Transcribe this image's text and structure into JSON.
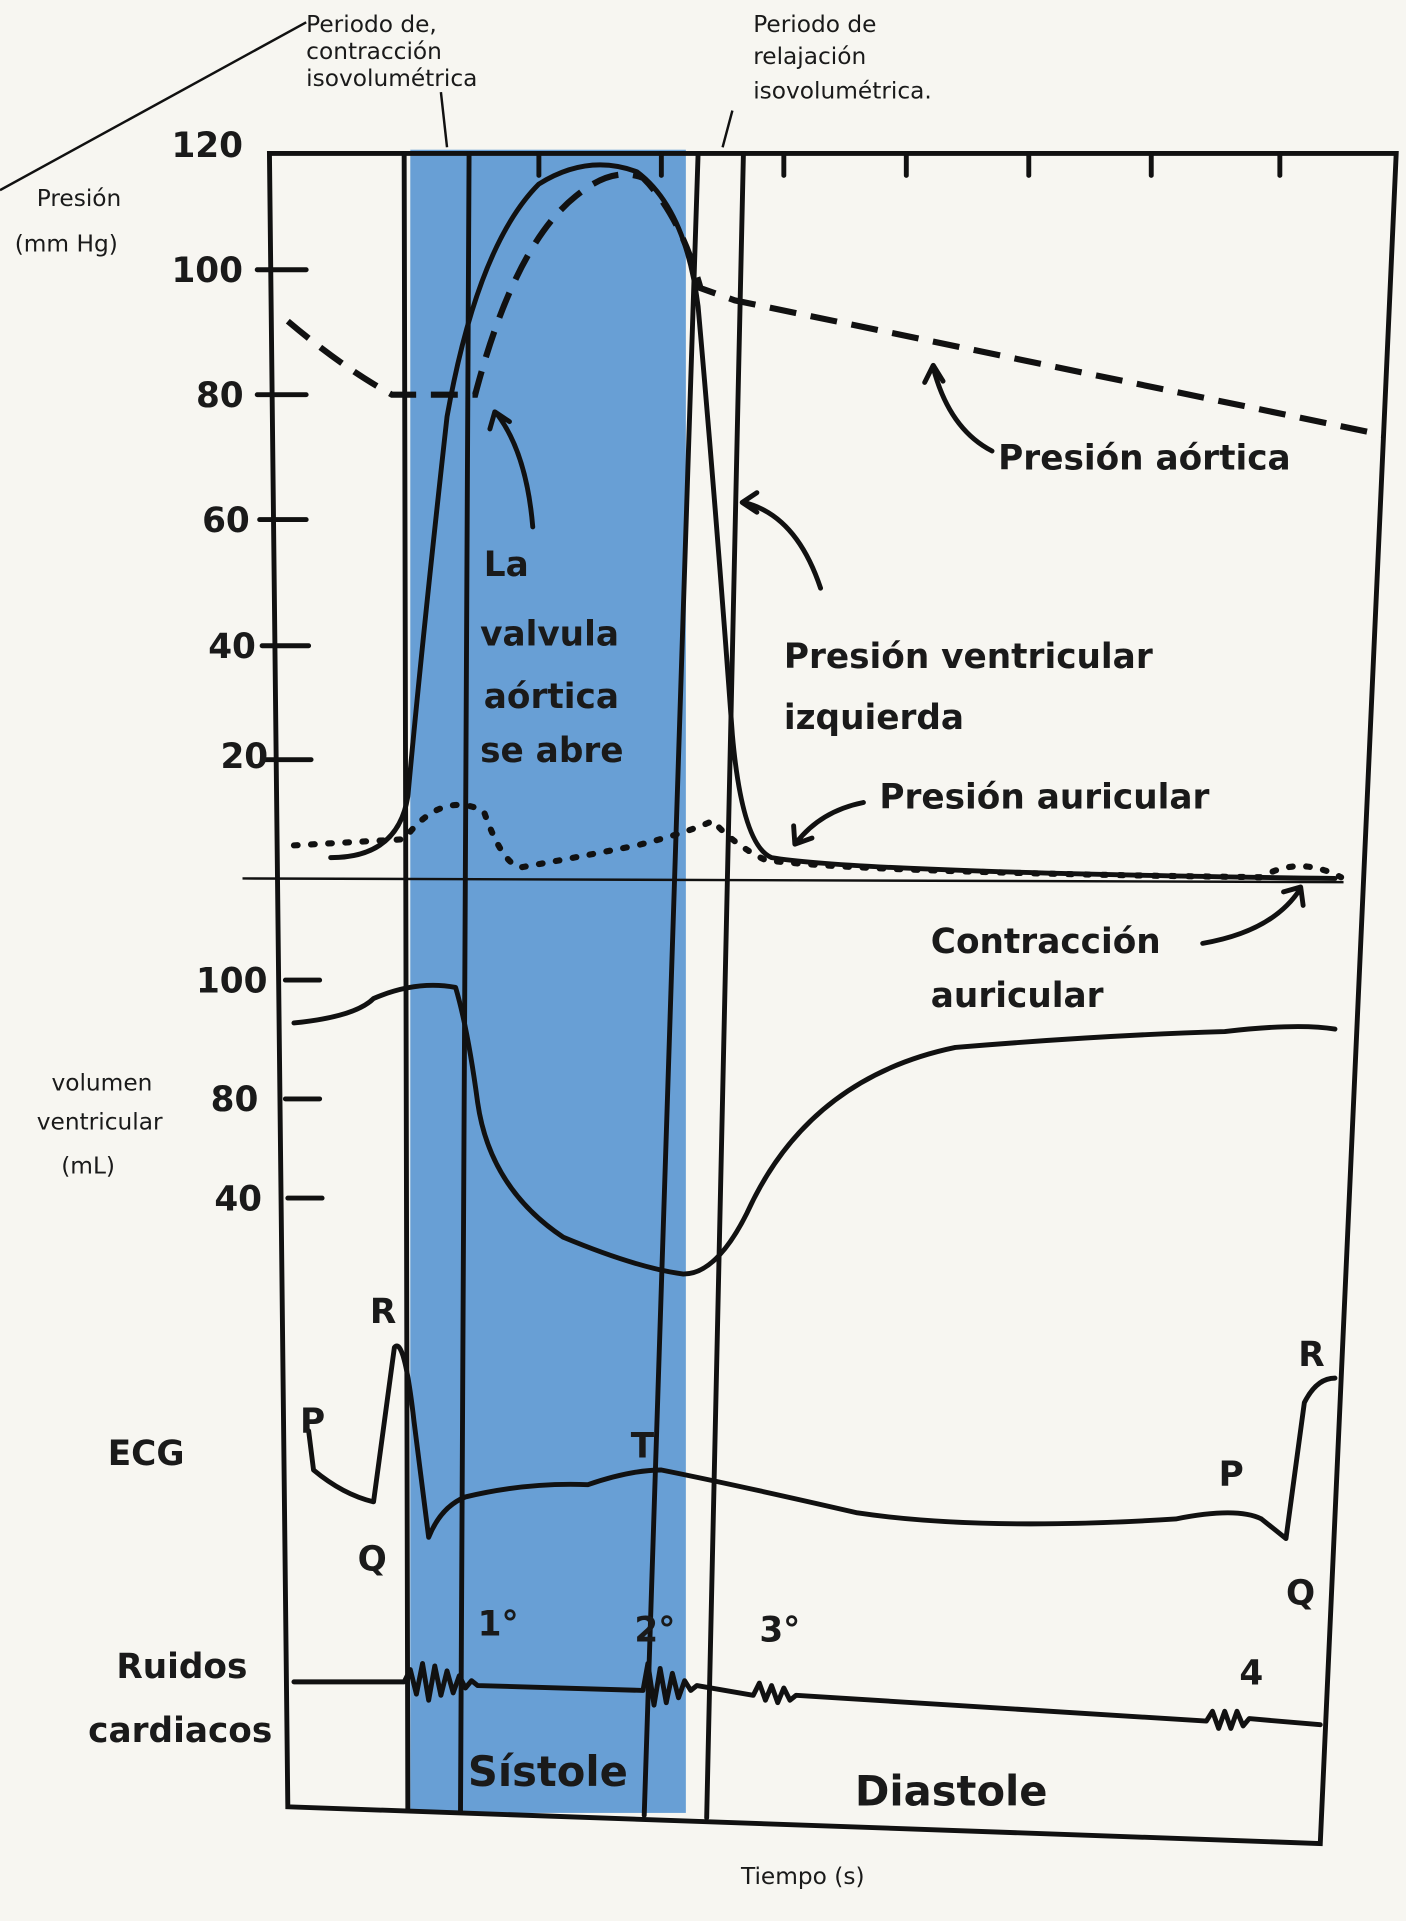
{
  "header": {
    "isovolumetric_contraction": [
      "Periodo de,",
      "contracción",
      "isovolumétrica"
    ],
    "isovolumetric_relaxation": [
      "Periodo de",
      "relajación",
      "isovolumétrica."
    ]
  },
  "pressure_axis": {
    "label": [
      "Presión",
      "(mm Hg)"
    ],
    "ticks": [
      "120",
      "100",
      "80",
      "60",
      "40",
      "20"
    ]
  },
  "volume_axis": {
    "label": [
      "volumen",
      "ventricular",
      "(mL)"
    ],
    "ticks": [
      "100",
      "80",
      "40"
    ]
  },
  "annotations": {
    "aortic_pressure": "Presión aórtica",
    "aortic_valve": [
      "La",
      "valvula",
      "aórtica",
      "se abre"
    ],
    "ventricular_pressure": [
      "Presión ventricular",
      "izquierda"
    ],
    "atrial_pressure": "Presión auricular",
    "atrial_contraction": [
      "Contracción",
      "auricular"
    ]
  },
  "ecg": {
    "label": "ECG",
    "waves": [
      "P",
      "R",
      "Q",
      "T",
      "P",
      "R",
      "Q"
    ]
  },
  "sounds": {
    "label": [
      "Ruidos",
      "cardiacos"
    ],
    "marks": [
      "1°",
      "2°",
      "3°",
      "4"
    ]
  },
  "phases": [
    "Sístole",
    "Diastole"
  ],
  "x_axis_label": "Tiempo (s)"
}
